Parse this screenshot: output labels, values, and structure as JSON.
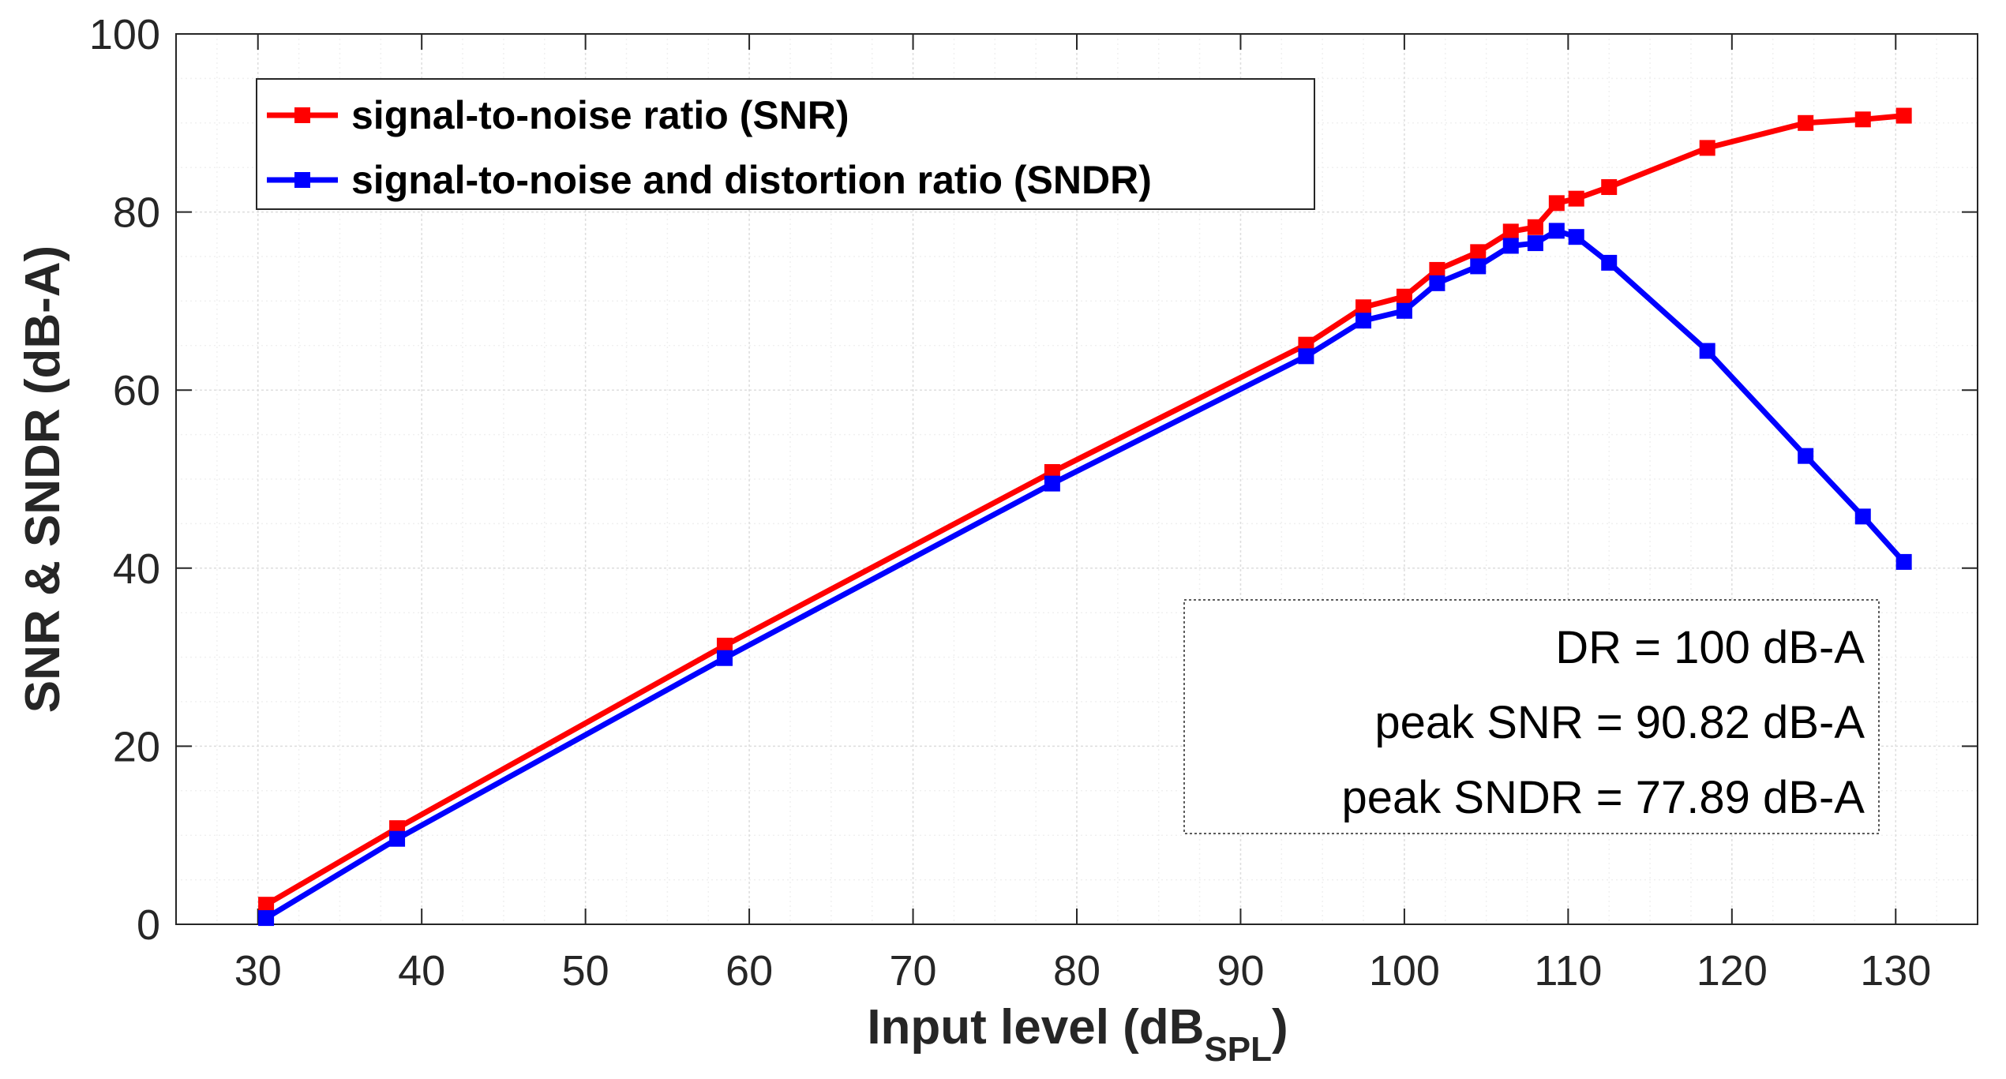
{
  "chart_data": {
    "type": "line",
    "xlabel_main": "Input level (dB",
    "xlabel_sub": "SPL",
    "xlabel_close": ")",
    "ylabel": "SNR & SNDR (dB-A)",
    "xlim": [
      25,
      135
    ],
    "ylim": [
      0,
      100
    ],
    "xticks": [
      30,
      40,
      50,
      60,
      70,
      80,
      90,
      100,
      110,
      120,
      130
    ],
    "yticks": [
      0,
      20,
      40,
      60,
      80,
      100
    ],
    "grid": true,
    "minor_grid": true,
    "legend_position": "top-left",
    "series": [
      {
        "name": "signal-to-noise ratio (SNR)",
        "color": "#ff0000",
        "x": [
          30.5,
          38.5,
          58.5,
          78.5,
          94,
          97.5,
          100,
          102,
          104.5,
          106.5,
          108,
          109.3,
          110.5,
          112.5,
          118.5,
          124.5,
          128,
          130.5
        ],
        "y": [
          2.2,
          10.8,
          31.3,
          50.8,
          65.1,
          69.3,
          70.5,
          73.5,
          75.5,
          77.8,
          78.3,
          81.0,
          81.5,
          82.8,
          87.2,
          90.0,
          90.4,
          90.82
        ]
      },
      {
        "name": "signal-to-noise and distortion ratio (SNDR)",
        "color": "#0000ff",
        "x": [
          30.5,
          38.5,
          58.5,
          78.5,
          94,
          97.5,
          100,
          102,
          104.5,
          106.5,
          108,
          109.3,
          110.5,
          112.5,
          118.5,
          124.5,
          128,
          130.5
        ],
        "y": [
          0.7,
          9.6,
          29.9,
          49.5,
          63.8,
          67.8,
          68.9,
          72.0,
          73.9,
          76.2,
          76.5,
          77.89,
          77.2,
          74.3,
          64.4,
          52.6,
          45.8,
          40.7
        ]
      }
    ],
    "annotations": [
      "DR = 100 dB-A",
      "peak SNR = 90.82 dB-A",
      "peak SNDR = 77.89 dB-A"
    ]
  }
}
